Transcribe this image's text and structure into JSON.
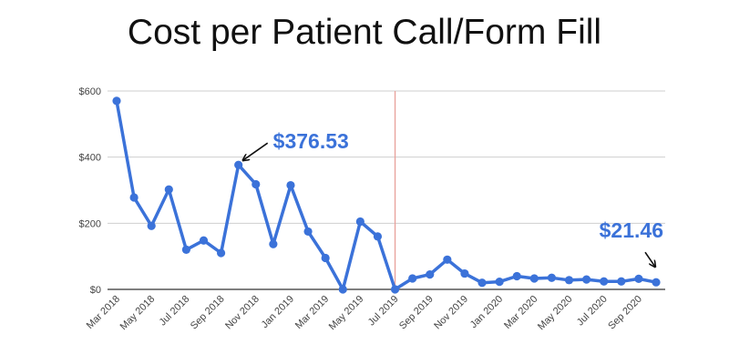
{
  "chart_data": {
    "type": "line",
    "title": "Cost per Patient Call/Form Fill",
    "xlabel": "",
    "ylabel": "",
    "ylim": [
      0,
      600
    ],
    "yticks": [
      0,
      200,
      400,
      600
    ],
    "ytick_labels": [
      "$0",
      "$200",
      "$400",
      "$600"
    ],
    "grid": true,
    "legend": "none",
    "line_color": "#3b72d9",
    "marker_line_color": "#e8a09a",
    "marker_line_at": "Jul 2019",
    "categories": [
      "Mar 2018",
      "Apr 2018",
      "May 2018",
      "Jun 2018",
      "Jul 2018",
      "Aug 2018",
      "Sep 2018",
      "Oct 2018",
      "Nov 2018",
      "Dec 2018",
      "Jan 2019",
      "Feb 2019",
      "Mar 2019",
      "Apr 2019",
      "May 2019",
      "Jun 2019",
      "Jul 2019",
      "Aug 2019",
      "Sep 2019",
      "Oct 2019",
      "Nov 2019",
      "Dec 2019",
      "Jan 2020",
      "Feb 2020",
      "Mar 2020",
      "Apr 2020",
      "May 2020",
      "Jun 2020",
      "Jul 2020",
      "Aug 2020",
      "Sep 2020",
      "Oct 2020"
    ],
    "tick_labels": [
      "Mar 2018",
      "May 2018",
      "Jul 2018",
      "Sep 2018",
      "Nov 2018",
      "Jan 2019",
      "Mar 2019",
      "May 2019",
      "Jul 2019",
      "Sep 2019",
      "Nov 2019",
      "Jan 2020",
      "Mar 2020",
      "May 2020",
      "Jul 2020",
      "Sep 2020"
    ],
    "values": [
      570,
      278,
      192,
      302,
      120,
      148,
      110,
      376.53,
      318,
      137,
      315,
      175,
      95,
      0,
      205,
      160,
      0,
      33,
      45,
      90,
      48,
      20,
      23,
      40,
      33,
      35,
      28,
      30,
      24,
      24,
      32,
      21.46
    ],
    "annotations": [
      {
        "text": "$376.53",
        "category": "Oct 2018",
        "value": 376.53,
        "color": "#3b72d9"
      },
      {
        "text": "$21.46",
        "category": "Oct 2020",
        "value": 21.46,
        "color": "#3b72d9"
      }
    ]
  }
}
